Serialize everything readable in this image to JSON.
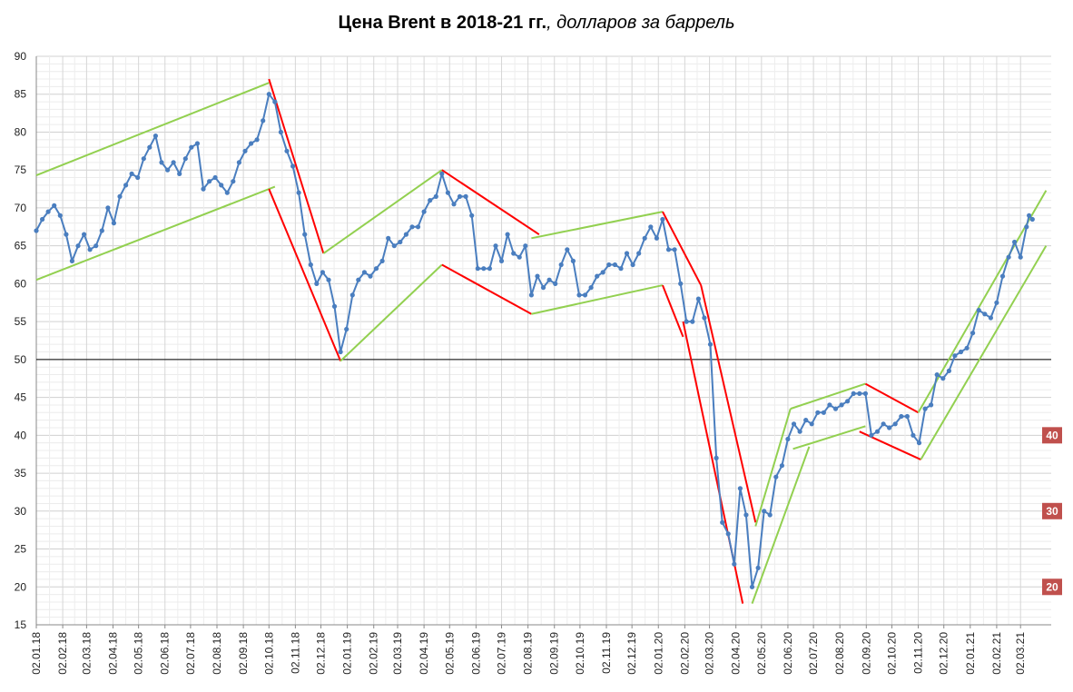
{
  "chart_data": {
    "type": "line",
    "title_bold": "Цена Brent в 2018-21 гг.",
    "title_italic": ", долларов за баррель",
    "ylim": [
      15,
      90
    ],
    "yticks": [
      15,
      20,
      25,
      30,
      35,
      40,
      45,
      50,
      55,
      60,
      65,
      70,
      75,
      80,
      85,
      90
    ],
    "x_dates": [
      "02.01.18",
      "02.02.18",
      "02.03.18",
      "02.04.18",
      "02.05.18",
      "02.06.18",
      "02.07.18",
      "02.08.18",
      "02.09.18",
      "02.10.18",
      "02.11.18",
      "02.12.18",
      "02.01.19",
      "02.02.19",
      "02.03.19",
      "02.04.19",
      "02.05.19",
      "02.06.19",
      "02.07.19",
      "02.08.19",
      "02.09.19",
      "02.10.19",
      "02.11.19",
      "02.12.19",
      "02.01.20",
      "02.02.20",
      "02.03.20",
      "02.04.20",
      "02.05.20",
      "02.06.20",
      "02.07.20",
      "02.08.20",
      "02.09.20",
      "02.10.20",
      "02.11.20",
      "02.12.20",
      "02.01.21",
      "02.02.21",
      "02.03.21"
    ],
    "grid": true,
    "reference_line": 50,
    "series": [
      {
        "color": "#4a7ebf",
        "points": [
          [
            "02.01.18",
            67.0
          ],
          [
            "09.01.18",
            68.5
          ],
          [
            "16.01.18",
            69.5
          ],
          [
            "23.01.18",
            70.3
          ],
          [
            "30.01.18",
            69.0
          ],
          [
            "06.02.18",
            66.5
          ],
          [
            "13.02.18",
            63.0
          ],
          [
            "20.02.18",
            65.0
          ],
          [
            "27.02.18",
            66.5
          ],
          [
            "06.03.18",
            64.5
          ],
          [
            "13.03.18",
            65.0
          ],
          [
            "20.03.18",
            67.0
          ],
          [
            "27.03.18",
            70.0
          ],
          [
            "03.04.18",
            68.0
          ],
          [
            "10.04.18",
            71.5
          ],
          [
            "17.04.18",
            73.0
          ],
          [
            "24.04.18",
            74.5
          ],
          [
            "01.05.18",
            74.0
          ],
          [
            "08.05.18",
            76.5
          ],
          [
            "15.05.18",
            78.0
          ],
          [
            "22.05.18",
            79.5
          ],
          [
            "29.05.18",
            76.0
          ],
          [
            "05.06.18",
            75.0
          ],
          [
            "12.06.18",
            76.0
          ],
          [
            "19.06.18",
            74.5
          ],
          [
            "26.06.18",
            76.5
          ],
          [
            "03.07.18",
            78.0
          ],
          [
            "10.07.18",
            78.5
          ],
          [
            "17.07.18",
            72.5
          ],
          [
            "24.07.18",
            73.5
          ],
          [
            "31.07.18",
            74.0
          ],
          [
            "07.08.18",
            73.0
          ],
          [
            "14.08.18",
            72.0
          ],
          [
            "21.08.18",
            73.5
          ],
          [
            "28.08.18",
            76.0
          ],
          [
            "04.09.18",
            77.5
          ],
          [
            "11.09.18",
            78.5
          ],
          [
            "18.09.18",
            79.0
          ],
          [
            "25.09.18",
            81.5
          ],
          [
            "02.10.18",
            85.0
          ],
          [
            "09.10.18",
            84.0
          ],
          [
            "16.10.18",
            80.0
          ],
          [
            "23.10.18",
            77.5
          ],
          [
            "30.10.18",
            75.5
          ],
          [
            "06.11.18",
            72.0
          ],
          [
            "13.11.18",
            66.5
          ],
          [
            "20.11.18",
            62.5
          ],
          [
            "27.11.18",
            60.0
          ],
          [
            "04.12.18",
            61.5
          ],
          [
            "11.12.18",
            60.5
          ],
          [
            "18.12.18",
            57.0
          ],
          [
            "25.12.18",
            51.0
          ],
          [
            "01.01.19",
            54.0
          ],
          [
            "08.01.19",
            58.5
          ],
          [
            "15.01.19",
            60.5
          ],
          [
            "22.01.19",
            61.5
          ],
          [
            "29.01.19",
            61.0
          ],
          [
            "05.02.19",
            62.0
          ],
          [
            "12.02.19",
            63.0
          ],
          [
            "19.02.19",
            66.0
          ],
          [
            "26.02.19",
            65.0
          ],
          [
            "05.03.19",
            65.5
          ],
          [
            "12.03.19",
            66.5
          ],
          [
            "19.03.19",
            67.5
          ],
          [
            "26.03.19",
            67.5
          ],
          [
            "02.04.19",
            69.5
          ],
          [
            "09.04.19",
            71.0
          ],
          [
            "16.04.19",
            71.5
          ],
          [
            "23.04.19",
            74.5
          ],
          [
            "30.04.19",
            72.0
          ],
          [
            "07.05.19",
            70.5
          ],
          [
            "14.05.19",
            71.5
          ],
          [
            "21.05.19",
            71.5
          ],
          [
            "28.05.19",
            69.0
          ],
          [
            "04.06.19",
            62.0
          ],
          [
            "11.06.19",
            62.0
          ],
          [
            "18.06.19",
            62.0
          ],
          [
            "25.06.19",
            65.0
          ],
          [
            "02.07.19",
            63.0
          ],
          [
            "09.07.19",
            66.5
          ],
          [
            "16.07.19",
            64.0
          ],
          [
            "23.07.19",
            63.5
          ],
          [
            "30.07.19",
            65.0
          ],
          [
            "06.08.19",
            58.5
          ],
          [
            "13.08.19",
            61.0
          ],
          [
            "20.08.19",
            59.5
          ],
          [
            "27.08.19",
            60.5
          ],
          [
            "03.09.19",
            60.0
          ],
          [
            "10.09.19",
            62.5
          ],
          [
            "17.09.19",
            64.5
          ],
          [
            "24.09.19",
            63.0
          ],
          [
            "01.10.19",
            58.5
          ],
          [
            "08.10.19",
            58.5
          ],
          [
            "15.10.19",
            59.5
          ],
          [
            "22.10.19",
            61.0
          ],
          [
            "29.10.19",
            61.5
          ],
          [
            "05.11.19",
            62.5
          ],
          [
            "12.11.19",
            62.5
          ],
          [
            "19.11.19",
            62.0
          ],
          [
            "26.11.19",
            64.0
          ],
          [
            "03.12.19",
            62.5
          ],
          [
            "10.12.19",
            64.0
          ],
          [
            "17.12.19",
            66.0
          ],
          [
            "24.12.19",
            67.5
          ],
          [
            "31.12.19",
            66.0
          ],
          [
            "07.01.20",
            68.5
          ],
          [
            "14.01.20",
            64.5
          ],
          [
            "21.01.20",
            64.5
          ],
          [
            "28.01.20",
            60.0
          ],
          [
            "04.02.20",
            55.0
          ],
          [
            "11.02.20",
            55.0
          ],
          [
            "18.02.20",
            58.0
          ],
          [
            "25.02.20",
            55.5
          ],
          [
            "03.03.20",
            52.0
          ],
          [
            "10.03.20",
            37.0
          ],
          [
            "17.03.20",
            28.5
          ],
          [
            "24.03.20",
            27.0
          ],
          [
            "31.03.20",
            23.0
          ],
          [
            "07.04.20",
            33.0
          ],
          [
            "14.04.20",
            29.5
          ],
          [
            "21.04.20",
            20.0
          ],
          [
            "28.04.20",
            22.5
          ],
          [
            "05.05.20",
            30.0
          ],
          [
            "12.05.20",
            29.5
          ],
          [
            "19.05.20",
            34.5
          ],
          [
            "26.05.20",
            36.0
          ],
          [
            "02.06.20",
            39.5
          ],
          [
            "09.06.20",
            41.5
          ],
          [
            "16.06.20",
            40.5
          ],
          [
            "23.06.20",
            42.0
          ],
          [
            "30.06.20",
            41.5
          ],
          [
            "07.07.20",
            43.0
          ],
          [
            "14.07.20",
            43.0
          ],
          [
            "21.07.20",
            44.0
          ],
          [
            "28.07.20",
            43.5
          ],
          [
            "04.08.20",
            44.0
          ],
          [
            "11.08.20",
            44.5
          ],
          [
            "18.08.20",
            45.5
          ],
          [
            "25.08.20",
            45.5
          ],
          [
            "01.09.20",
            45.5
          ],
          [
            "08.09.20",
            40.0
          ],
          [
            "15.09.20",
            40.5
          ],
          [
            "22.09.20",
            41.5
          ],
          [
            "29.09.20",
            41.0
          ],
          [
            "06.10.20",
            41.5
          ],
          [
            "13.10.20",
            42.5
          ],
          [
            "20.10.20",
            42.5
          ],
          [
            "27.10.20",
            40.0
          ],
          [
            "03.11.20",
            39.0
          ],
          [
            "10.11.20",
            43.5
          ],
          [
            "17.11.20",
            44.0
          ],
          [
            "24.11.20",
            48.0
          ],
          [
            "01.12.20",
            47.5
          ],
          [
            "08.12.20",
            48.5
          ],
          [
            "15.12.20",
            50.5
          ],
          [
            "22.12.20",
            51.0
          ],
          [
            "29.12.20",
            51.5
          ],
          [
            "05.01.21",
            53.5
          ],
          [
            "12.01.21",
            56.5
          ],
          [
            "19.01.21",
            56.0
          ],
          [
            "26.01.21",
            55.5
          ],
          [
            "02.02.21",
            57.5
          ],
          [
            "09.02.21",
            61.0
          ],
          [
            "16.02.21",
            63.5
          ],
          [
            "23.02.21",
            65.5
          ],
          [
            "02.03.21",
            63.5
          ],
          [
            "09.03.21",
            67.5
          ],
          [
            "12.03.21",
            69.0
          ],
          [
            "16.03.21",
            68.5
          ]
        ]
      }
    ],
    "trend_lines": [
      {
        "color": "#92d050",
        "from": [
          "02.01.18",
          74.3
        ],
        "to": [
          "02.10.18",
          86.5
        ]
      },
      {
        "color": "#92d050",
        "from": [
          "02.01.18",
          60.5
        ],
        "to": [
          "09.10.18",
          72.8
        ]
      },
      {
        "color": "#ff0000",
        "from": [
          "02.10.18",
          87.0
        ],
        "to": [
          "05.12.18",
          64.0
        ]
      },
      {
        "color": "#ff0000",
        "from": [
          "02.10.18",
          72.5
        ],
        "to": [
          "25.12.18",
          49.8
        ]
      },
      {
        "color": "#92d050",
        "from": [
          "05.12.18",
          64.0
        ],
        "to": [
          "23.04.19",
          75.0
        ]
      },
      {
        "color": "#92d050",
        "from": [
          "25.12.18",
          49.8
        ],
        "to": [
          "23.04.19",
          62.5
        ]
      },
      {
        "color": "#ff0000",
        "from": [
          "23.04.19",
          75.0
        ],
        "to": [
          "15.08.19",
          66.5
        ]
      },
      {
        "color": "#ff0000",
        "from": [
          "23.04.19",
          62.5
        ],
        "to": [
          "06.08.19",
          56.0
        ]
      },
      {
        "color": "#92d050",
        "from": [
          "06.08.19",
          66.0
        ],
        "to": [
          "07.01.20",
          69.5
        ]
      },
      {
        "color": "#92d050",
        "from": [
          "06.08.19",
          56.0
        ],
        "to": [
          "07.01.20",
          59.8
        ]
      },
      {
        "color": "#ff0000",
        "from": [
          "07.01.20",
          69.5
        ],
        "to": [
          "21.02.20",
          59.8
        ]
      },
      {
        "color": "#ff0000",
        "from": [
          "07.01.20",
          59.8
        ],
        "to": [
          "31.01.20",
          53.0
        ]
      },
      {
        "color": "#ff0000",
        "from": [
          "21.02.20",
          59.8
        ],
        "to": [
          "25.04.20",
          28.5
        ]
      },
      {
        "color": "#ff0000",
        "from": [
          "31.01.20",
          55.0
        ],
        "to": [
          "10.04.20",
          17.8
        ]
      },
      {
        "color": "#92d050",
        "from": [
          "25.04.20",
          28.0
        ],
        "to": [
          "05.06.20",
          43.5
        ]
      },
      {
        "color": "#92d050",
        "from": [
          "21.04.20",
          17.8
        ],
        "to": [
          "27.06.20",
          38.5
        ]
      },
      {
        "color": "#92d050",
        "from": [
          "05.06.20",
          43.5
        ],
        "to": [
          "01.09.20",
          46.8
        ]
      },
      {
        "color": "#92d050",
        "from": [
          "08.06.20",
          38.2
        ],
        "to": [
          "01.09.20",
          41.2
        ]
      },
      {
        "color": "#ff0000",
        "from": [
          "01.09.20",
          46.8
        ],
        "to": [
          "02.11.20",
          43.0
        ]
      },
      {
        "color": "#ff0000",
        "from": [
          "25.08.20",
          40.5
        ],
        "to": [
          "05.11.20",
          36.8
        ]
      },
      {
        "color": "#92d050",
        "from": [
          "02.11.20",
          43.0
        ],
        "to": [
          "01.04.21",
          72.3
        ]
      },
      {
        "color": "#92d050",
        "from": [
          "05.11.20",
          36.8
        ],
        "to": [
          "01.04.21",
          65.0
        ]
      }
    ],
    "badges": [
      {
        "label": "40",
        "value": 40
      },
      {
        "label": "30",
        "value": 30
      },
      {
        "label": "20",
        "value": 20
      }
    ],
    "badge_color": "#c0504d"
  }
}
